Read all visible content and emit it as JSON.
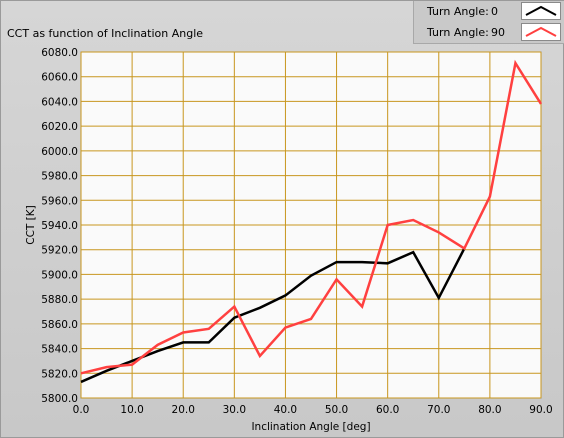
{
  "title": "CCT as function of Inclination Angle",
  "legend": [
    {
      "label": "Turn Angle:",
      "value": "0",
      "color": "#000000"
    },
    {
      "label": "Turn Angle:",
      "value": "90",
      "color": "#ff4040"
    }
  ],
  "chart_data": {
    "type": "line",
    "title": "CCT as function of Inclination Angle",
    "xlabel": "Inclination Angle [deg]",
    "ylabel": "CCT [K]",
    "xlim": [
      0,
      90
    ],
    "ylim": [
      5800,
      6080
    ],
    "xticks": [
      "0.0",
      "10.0",
      "20.0",
      "30.0",
      "40.0",
      "50.0",
      "60.0",
      "70.0",
      "80.0",
      "90.0"
    ],
    "yticks": [
      "5800.0",
      "5820.0",
      "5840.0",
      "5860.0",
      "5880.0",
      "5900.0",
      "5920.0",
      "5940.0",
      "5960.0",
      "5980.0",
      "6000.0",
      "6020.0",
      "6040.0",
      "6060.0",
      "6080.0"
    ],
    "grid": true,
    "grid_color": "#c8961e",
    "plot_background": "#fafafa",
    "series": [
      {
        "name": "Turn Angle: 0",
        "color": "#000000",
        "x": [
          0,
          5,
          10,
          15,
          20,
          25,
          30,
          35,
          40,
          45,
          50,
          55,
          60,
          65,
          70,
          75
        ],
        "y": [
          5813,
          5822,
          5830,
          5838,
          5845,
          5845,
          5865,
          5873,
          5883,
          5899,
          5910,
          5910,
          5909,
          5918,
          5881,
          5921
        ]
      },
      {
        "name": "Turn Angle: 90",
        "color": "#ff4040",
        "x": [
          0,
          5,
          10,
          15,
          20,
          25,
          30,
          35,
          40,
          45,
          50,
          55,
          60,
          65,
          70,
          75,
          80,
          85,
          90
        ],
        "y": [
          5820,
          5825,
          5827,
          5843,
          5853,
          5856,
          5874,
          5834,
          5857,
          5864,
          5896,
          5874,
          5940,
          5944,
          5934,
          5921,
          5963,
          6071,
          6038
        ]
      }
    ]
  }
}
